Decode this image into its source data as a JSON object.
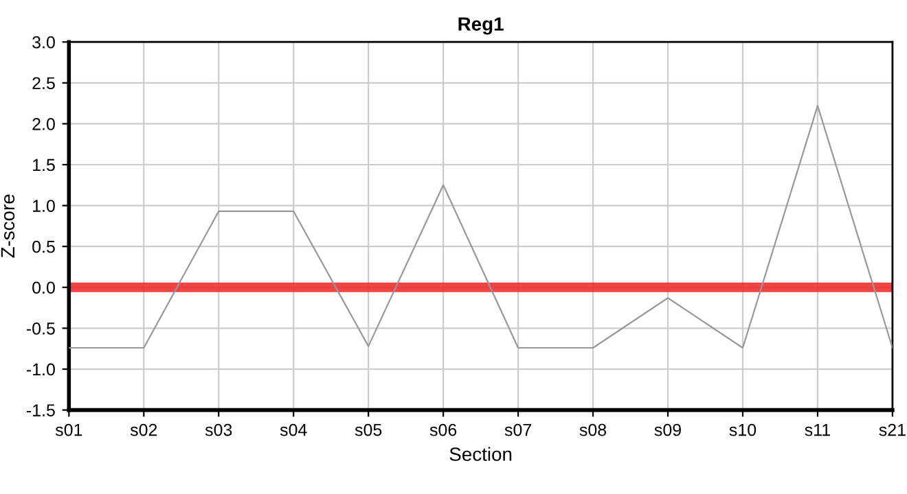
{
  "chart_data": {
    "type": "line",
    "title": "Reg1",
    "xlabel": "Section",
    "ylabel": "Z-score",
    "categories": [
      "s01",
      "s02",
      "s03",
      "s04",
      "s05",
      "s06",
      "s07",
      "s08",
      "s09",
      "s10",
      "s11",
      "s21"
    ],
    "series": [
      {
        "color": "#999999",
        "values": [
          -0.74,
          -0.74,
          0.93,
          0.93,
          -0.72,
          1.25,
          -0.74,
          -0.74,
          -0.13,
          -0.74,
          2.22,
          -0.74
        ]
      }
    ],
    "ylim": [
      -1.5,
      3.0
    ],
    "yticks": [
      {
        "value": -1.5,
        "label": "-1.5"
      },
      {
        "value": -1.0,
        "label": "-1.0"
      },
      {
        "value": -0.5,
        "label": "-0.5"
      },
      {
        "value": 0,
        "label": "0.0"
      },
      {
        "value": 0.5,
        "label": "0.5"
      },
      {
        "value": 1.0,
        "label": "1.0"
      },
      {
        "value": 1.5,
        "label": "1.5"
      },
      {
        "value": 2.0,
        "label": "2.0"
      },
      {
        "value": 2.5,
        "label": "2.5"
      },
      {
        "value": 3.0,
        "label": "3.0"
      }
    ],
    "ref_lines": [
      {
        "axis": "y",
        "value": 0,
        "color": "#f03030"
      }
    ],
    "grid": true,
    "marker": "none",
    "line_style": "solid"
  }
}
